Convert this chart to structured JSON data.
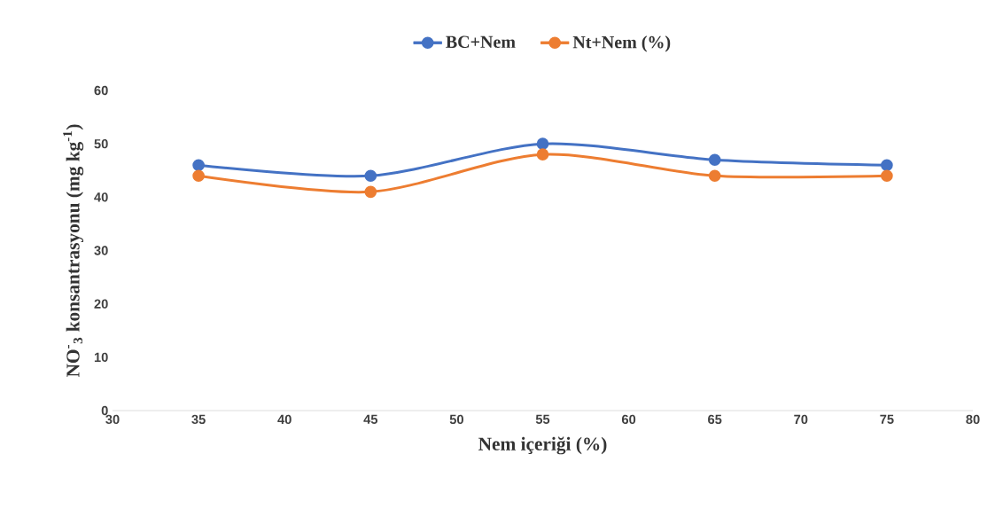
{
  "chart_data": {
    "type": "line",
    "xlabel": "Nem içeriği (%)",
    "ylabel": "NO$^{-}$$_{3}$ konsantrasyonu (mg kg$^{-1}$)",
    "x": [
      35,
      45,
      55,
      65,
      75
    ],
    "series": [
      {
        "name": "BC+Nem",
        "color": "#4472c4",
        "values": [
          46,
          44,
          50,
          47,
          46
        ]
      },
      {
        "name": "Nt+Nem (%)",
        "color": "#ed7d31",
        "values": [
          44,
          41,
          48,
          44,
          44
        ]
      }
    ],
    "xlim": [
      30,
      80
    ],
    "xticks": [
      30,
      35,
      40,
      45,
      50,
      55,
      60,
      65,
      70,
      75,
      80
    ],
    "ylim": [
      0,
      60
    ],
    "yticks": [
      0,
      10,
      20,
      30,
      40,
      50,
      60
    ],
    "legend": "top",
    "marker": "circle",
    "line_style": "solid"
  }
}
